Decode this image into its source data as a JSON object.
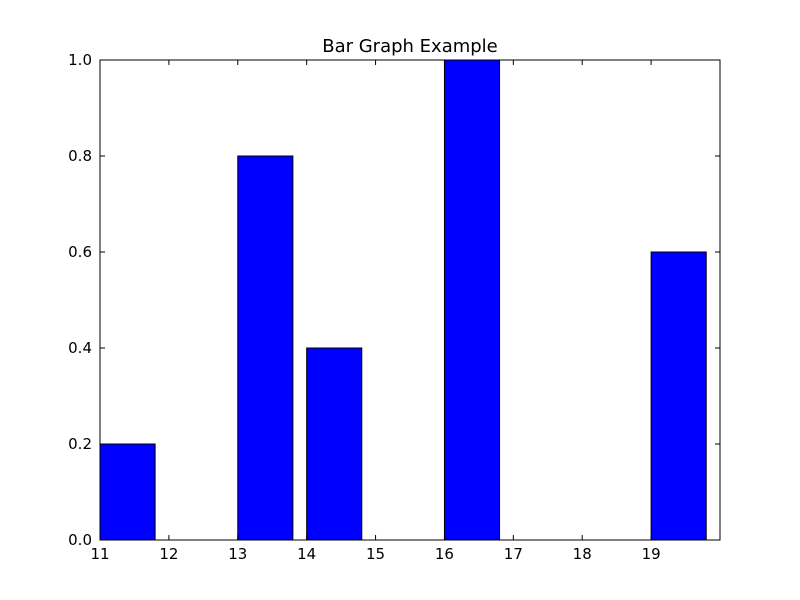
{
  "chart_data": {
    "type": "bar",
    "title": "Bar Graph Example",
    "xlabel": "",
    "ylabel": "",
    "x": [
      11,
      13,
      14,
      16,
      19
    ],
    "values": [
      0.2,
      0.8,
      0.4,
      1.0,
      0.6
    ],
    "bar_width": 0.8,
    "bar_align": "left",
    "xlim": [
      11,
      20
    ],
    "ylim": [
      0,
      1.0
    ],
    "xticks": [
      11,
      12,
      13,
      14,
      15,
      16,
      17,
      18,
      19
    ],
    "xtick_labels": [
      "11",
      "12",
      "13",
      "14",
      "15",
      "16",
      "17",
      "18",
      "19"
    ],
    "yticks": [
      0,
      0.2,
      0.4,
      0.6,
      0.8,
      1.0
    ],
    "ytick_labels": [
      "0.0",
      "0.2",
      "0.4",
      "0.6",
      "0.8",
      "1.0"
    ],
    "grid": false,
    "legend": "none",
    "bar_color": "#0000ff",
    "edge_color": "#000000"
  }
}
